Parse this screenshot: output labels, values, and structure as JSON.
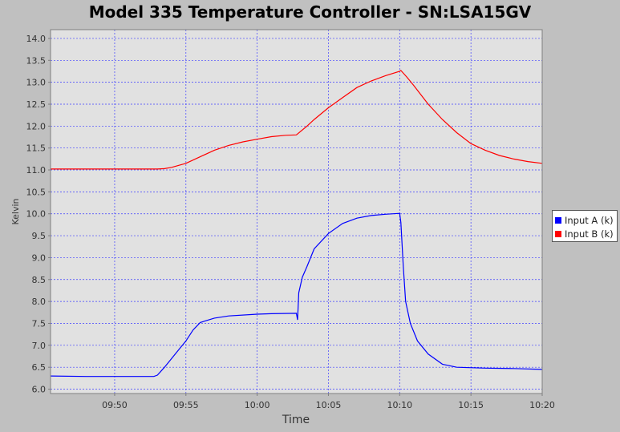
{
  "chart_data": {
    "type": "line",
    "title": "Model 335 Temperature Controller - SN:LSA15GV",
    "xlabel": "Time",
    "ylabel": "Kelvin",
    "x_ticks": [
      "09:50",
      "09:55",
      "10:00",
      "10:05",
      "10:10",
      "10:15",
      "10:20"
    ],
    "x_range": [
      "09:45:30",
      "10:20:00"
    ],
    "ylim": [
      5.9,
      14.2
    ],
    "y_ticks": [
      6.0,
      6.5,
      7.0,
      7.5,
      8.0,
      8.5,
      9.0,
      9.5,
      10.0,
      10.5,
      11.0,
      11.5,
      12.0,
      12.5,
      13.0,
      13.5,
      14.0
    ],
    "grid": true,
    "legend_position": "right",
    "series": [
      {
        "name": "Input A (k)",
        "color": "#0000ff",
        "points": [
          [
            "09:45:30",
            6.3
          ],
          [
            "09:48:00",
            6.29
          ],
          [
            "09:51:00",
            6.29
          ],
          [
            "09:52:45",
            6.29
          ],
          [
            "09:53:00",
            6.32
          ],
          [
            "09:53:30",
            6.5
          ],
          [
            "09:54:00",
            6.7
          ],
          [
            "09:54:30",
            6.9
          ],
          [
            "09:55:00",
            7.1
          ],
          [
            "09:55:30",
            7.35
          ],
          [
            "09:56:00",
            7.52
          ],
          [
            "09:57:00",
            7.62
          ],
          [
            "09:58:00",
            7.67
          ],
          [
            "10:00:00",
            7.71
          ],
          [
            "10:01:00",
            7.72
          ],
          [
            "10:02:45",
            7.73
          ],
          [
            "10:02:50",
            7.58
          ],
          [
            "10:02:55",
            8.2
          ],
          [
            "10:03:10",
            8.55
          ],
          [
            "10:03:30",
            8.8
          ],
          [
            "10:04:00",
            9.2
          ],
          [
            "10:05:00",
            9.55
          ],
          [
            "10:06:00",
            9.78
          ],
          [
            "10:07:00",
            9.9
          ],
          [
            "10:08:00",
            9.96
          ],
          [
            "10:09:00",
            9.99
          ],
          [
            "10:10:00",
            10.01
          ],
          [
            "10:10:05",
            9.8
          ],
          [
            "10:10:15",
            8.8
          ],
          [
            "10:10:25",
            8.0
          ],
          [
            "10:10:45",
            7.5
          ],
          [
            "10:11:15",
            7.1
          ],
          [
            "10:12:00",
            6.8
          ],
          [
            "10:13:00",
            6.57
          ],
          [
            "10:14:00",
            6.5
          ],
          [
            "10:16:00",
            6.48
          ],
          [
            "10:18:00",
            6.47
          ],
          [
            "10:20:00",
            6.45
          ]
        ]
      },
      {
        "name": "Input B (k)",
        "color": "#ff0000",
        "points": [
          [
            "09:45:30",
            11.02
          ],
          [
            "09:50:00",
            11.02
          ],
          [
            "09:53:00",
            11.02
          ],
          [
            "09:53:30",
            11.03
          ],
          [
            "09:54:00",
            11.06
          ],
          [
            "09:55:00",
            11.15
          ],
          [
            "09:56:00",
            11.3
          ],
          [
            "09:57:00",
            11.45
          ],
          [
            "09:58:00",
            11.56
          ],
          [
            "09:59:00",
            11.64
          ],
          [
            "10:00:00",
            11.7
          ],
          [
            "10:01:00",
            11.76
          ],
          [
            "10:02:00",
            11.79
          ],
          [
            "10:02:45",
            11.8
          ],
          [
            "10:03:30",
            12.0
          ],
          [
            "10:04:00",
            12.15
          ],
          [
            "10:05:00",
            12.42
          ],
          [
            "10:06:00",
            12.65
          ],
          [
            "10:07:00",
            12.88
          ],
          [
            "10:08:00",
            13.03
          ],
          [
            "10:09:00",
            13.15
          ],
          [
            "10:10:00",
            13.25
          ],
          [
            "10:10:05",
            13.27
          ],
          [
            "10:10:30",
            13.12
          ],
          [
            "10:11:00",
            12.92
          ],
          [
            "10:12:00",
            12.5
          ],
          [
            "10:13:00",
            12.15
          ],
          [
            "10:14:00",
            11.85
          ],
          [
            "10:15:00",
            11.6
          ],
          [
            "10:16:00",
            11.45
          ],
          [
            "10:17:00",
            11.33
          ],
          [
            "10:18:00",
            11.25
          ],
          [
            "10:19:00",
            11.19
          ],
          [
            "10:20:00",
            11.15
          ]
        ]
      }
    ]
  }
}
